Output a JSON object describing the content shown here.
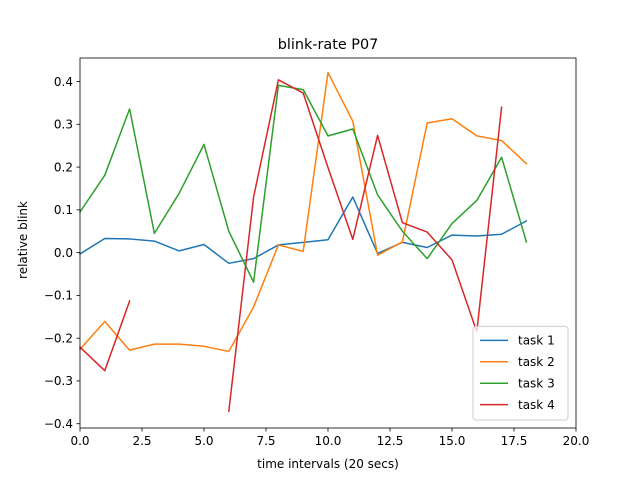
{
  "chart_data": {
    "type": "line",
    "title": "blink-rate P07",
    "xlabel": "time intervals (20 secs)",
    "ylabel": "relative blink",
    "xlim": [
      0,
      20
    ],
    "ylim": [
      -0.41,
      0.455
    ],
    "xticks": [
      0.0,
      2.5,
      5.0,
      7.5,
      10.0,
      12.5,
      15.0,
      17.5,
      20.0
    ],
    "xtick_labels": [
      "0.0",
      "2.5",
      "5.0",
      "7.5",
      "10.0",
      "12.5",
      "15.0",
      "17.5",
      "20.0"
    ],
    "yticks": [
      -0.4,
      -0.3,
      -0.2,
      -0.1,
      0.0,
      0.1,
      0.2,
      0.3,
      0.4
    ],
    "ytick_labels": [
      "−0.4",
      "−0.3",
      "−0.2",
      "−0.1",
      "0.0",
      "0.1",
      "0.2",
      "0.3",
      "0.4"
    ],
    "grid": false,
    "legend_position": "bottom-right",
    "series": [
      {
        "name": "task 1",
        "color": "#1f77b4",
        "points": [
          [
            0,
            -0.003
          ],
          [
            1,
            0.033
          ],
          [
            2,
            0.032
          ],
          [
            3,
            0.027
          ],
          [
            4,
            0.004
          ],
          [
            5,
            0.019
          ],
          [
            6,
            -0.025
          ],
          [
            7,
            -0.014
          ],
          [
            8,
            0.018
          ],
          [
            9,
            0.024
          ],
          [
            10,
            0.03
          ],
          [
            11,
            0.13
          ],
          [
            12,
            -0.002
          ],
          [
            13,
            0.024
          ],
          [
            14,
            0.012
          ],
          [
            15,
            0.041
          ],
          [
            16,
            0.039
          ],
          [
            17,
            0.043
          ],
          [
            18,
            0.074
          ]
        ]
      },
      {
        "name": "task 2",
        "color": "#ff7f0e",
        "points": [
          [
            0,
            -0.226
          ],
          [
            1,
            -0.161
          ],
          [
            2,
            -0.228
          ],
          [
            3,
            -0.214
          ],
          [
            4,
            -0.214
          ],
          [
            5,
            -0.219
          ],
          [
            6,
            -0.231
          ],
          [
            7,
            -0.127
          ],
          [
            8,
            0.018
          ],
          [
            9,
            0.003
          ],
          [
            10,
            0.421
          ],
          [
            11,
            0.307
          ],
          [
            12,
            -0.006
          ],
          [
            13,
            0.025
          ],
          [
            14,
            0.303
          ],
          [
            15,
            0.313
          ],
          [
            16,
            0.273
          ],
          [
            17,
            0.262
          ],
          [
            18,
            0.208
          ]
        ]
      },
      {
        "name": "task 3",
        "color": "#2ca02c",
        "points": [
          [
            0,
            0.095
          ],
          [
            1,
            0.181
          ],
          [
            2,
            0.336
          ],
          [
            3,
            0.045
          ],
          [
            4,
            0.139
          ],
          [
            5,
            0.253
          ],
          [
            6,
            0.05
          ],
          [
            7,
            -0.069
          ],
          [
            8,
            0.391
          ],
          [
            9,
            0.381
          ],
          [
            10,
            0.273
          ],
          [
            11,
            0.289
          ],
          [
            12,
            0.135
          ],
          [
            13,
            0.05
          ],
          [
            14,
            -0.014
          ],
          [
            15,
            0.068
          ],
          [
            16,
            0.122
          ],
          [
            17,
            0.223
          ],
          [
            18,
            0.025
          ]
        ]
      },
      {
        "name": "task 4",
        "color": "#d62728",
        "points": [
          [
            0,
            -0.221
          ],
          [
            1,
            -0.276
          ],
          [
            2,
            -0.113
          ],
          [
            3,
            null
          ],
          [
            4,
            null
          ],
          [
            5,
            null
          ],
          [
            6,
            -0.371
          ],
          [
            7,
            0.13
          ],
          [
            8,
            0.404
          ],
          [
            9,
            0.373
          ],
          [
            10,
            0.199
          ],
          [
            11,
            0.031
          ],
          [
            12,
            0.274
          ],
          [
            13,
            0.07
          ],
          [
            14,
            0.048
          ],
          [
            15,
            -0.017
          ],
          [
            16,
            -0.185
          ],
          [
            17,
            0.34
          ]
        ]
      }
    ]
  }
}
